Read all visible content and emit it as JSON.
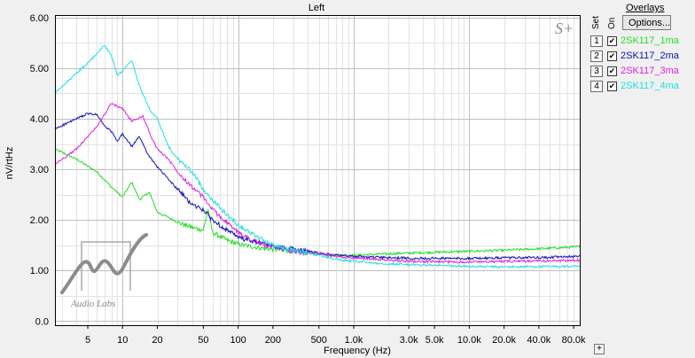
{
  "colors": {
    "background": "#ffffff",
    "grid_major": "#bfbfbf",
    "grid_minor": "#e3e3e3",
    "series": [
      "#22dd22",
      "#1010c0",
      "#e020e0",
      "#20e0e0"
    ]
  },
  "overlays": {
    "title": "Overlays",
    "options_label": "Options...",
    "set_label": "Set",
    "on_label": "On",
    "checkmark": "✔",
    "items": [
      {
        "num": "1",
        "name": "2SK117_1ma"
      },
      {
        "num": "2",
        "name": "2SK117_2ma"
      },
      {
        "num": "3",
        "name": "2SK117_3ma"
      },
      {
        "num": "4",
        "name": "2SK117_4ma"
      }
    ]
  },
  "corner_button": "+",
  "watermark": {
    "logo_text": "Audio Labs",
    "mark": "S+"
  },
  "chart_data": {
    "type": "line",
    "title": "Left",
    "xlabel": "Frequency (Hz)",
    "ylabel": "nV/rtHz",
    "x_scale": "log",
    "xlim": [
      2.6,
      92000
    ],
    "ylim": [
      -0.1,
      6.05
    ],
    "grid": true,
    "xticks": [
      {
        "v": 5,
        "label": "5"
      },
      {
        "v": 10,
        "label": "10"
      },
      {
        "v": 20,
        "label": "20"
      },
      {
        "v": 50,
        "label": "50"
      },
      {
        "v": 100,
        "label": "100"
      },
      {
        "v": 200,
        "label": "200"
      },
      {
        "v": 500,
        "label": "500"
      },
      {
        "v": 1000,
        "label": "1.0k"
      },
      {
        "v": 3000,
        "label": "3.0k"
      },
      {
        "v": 5000,
        "label": "5.0k"
      },
      {
        "v": 10000,
        "label": "10.0k"
      },
      {
        "v": 20000,
        "label": "20.0k"
      },
      {
        "v": 40000,
        "label": "40.0k"
      },
      {
        "v": 80000,
        "label": "80.0k"
      }
    ],
    "yticks": [
      {
        "v": 0,
        "label": "0.0"
      },
      {
        "v": 1,
        "label": "1.00"
      },
      {
        "v": 2,
        "label": "2.00"
      },
      {
        "v": 3,
        "label": "3.00"
      },
      {
        "v": 4,
        "label": "4.00"
      },
      {
        "v": 5,
        "label": "5.00"
      },
      {
        "v": 6,
        "label": "6.00"
      }
    ],
    "series": [
      {
        "name": "2SK117_1ma",
        "points": [
          [
            2.6,
            3.4
          ],
          [
            4,
            3.2
          ],
          [
            6,
            2.95
          ],
          [
            8,
            2.65
          ],
          [
            10,
            2.45
          ],
          [
            12,
            2.75
          ],
          [
            14,
            2.4
          ],
          [
            17,
            2.55
          ],
          [
            20,
            2.15
          ],
          [
            25,
            2.05
          ],
          [
            30,
            1.95
          ],
          [
            40,
            1.85
          ],
          [
            50,
            1.8
          ],
          [
            55,
            2.2
          ],
          [
            60,
            1.75
          ],
          [
            80,
            1.6
          ],
          [
            100,
            1.52
          ],
          [
            150,
            1.45
          ],
          [
            200,
            1.42
          ],
          [
            300,
            1.38
          ],
          [
            500,
            1.33
          ],
          [
            700,
            1.3
          ],
          [
            1000,
            1.3
          ],
          [
            2000,
            1.33
          ],
          [
            5000,
            1.36
          ],
          [
            10000,
            1.38
          ],
          [
            20000,
            1.4
          ],
          [
            50000,
            1.44
          ],
          [
            92000,
            1.47
          ]
        ]
      },
      {
        "name": "2SK117_2ma",
        "points": [
          [
            2.6,
            3.8
          ],
          [
            4,
            4.0
          ],
          [
            5,
            4.1
          ],
          [
            6,
            4.08
          ],
          [
            7,
            3.85
          ],
          [
            8,
            3.75
          ],
          [
            9,
            3.55
          ],
          [
            10,
            3.7
          ],
          [
            12,
            3.45
          ],
          [
            14,
            3.65
          ],
          [
            17,
            3.25
          ],
          [
            20,
            3.05
          ],
          [
            25,
            2.8
          ],
          [
            30,
            2.6
          ],
          [
            40,
            2.3
          ],
          [
            50,
            2.2
          ],
          [
            60,
            2.0
          ],
          [
            80,
            1.8
          ],
          [
            100,
            1.65
          ],
          [
            150,
            1.55
          ],
          [
            200,
            1.48
          ],
          [
            300,
            1.42
          ],
          [
            500,
            1.35
          ],
          [
            700,
            1.3
          ],
          [
            1000,
            1.28
          ],
          [
            2000,
            1.25
          ],
          [
            5000,
            1.24
          ],
          [
            10000,
            1.24
          ],
          [
            20000,
            1.25
          ],
          [
            50000,
            1.26
          ],
          [
            92000,
            1.28
          ]
        ]
      },
      {
        "name": "2SK117_3ma",
        "points": [
          [
            2.6,
            3.1
          ],
          [
            4,
            3.4
          ],
          [
            6,
            3.85
          ],
          [
            8,
            4.3
          ],
          [
            10,
            4.2
          ],
          [
            12,
            3.95
          ],
          [
            15,
            4.05
          ],
          [
            18,
            3.6
          ],
          [
            20,
            3.4
          ],
          [
            25,
            3.2
          ],
          [
            30,
            2.95
          ],
          [
            40,
            2.65
          ],
          [
            50,
            2.45
          ],
          [
            60,
            2.2
          ],
          [
            80,
            1.95
          ],
          [
            100,
            1.75
          ],
          [
            150,
            1.55
          ],
          [
            200,
            1.45
          ],
          [
            300,
            1.38
          ],
          [
            500,
            1.32
          ],
          [
            700,
            1.28
          ],
          [
            1000,
            1.25
          ],
          [
            2000,
            1.2
          ],
          [
            5000,
            1.17
          ],
          [
            10000,
            1.17
          ],
          [
            20000,
            1.18
          ],
          [
            50000,
            1.19
          ],
          [
            92000,
            1.2
          ]
        ]
      },
      {
        "name": "2SK117_4ma",
        "points": [
          [
            2.6,
            4.5
          ],
          [
            4,
            4.9
          ],
          [
            5,
            5.1
          ],
          [
            6,
            5.3
          ],
          [
            7,
            5.45
          ],
          [
            8,
            5.25
          ],
          [
            9,
            4.85
          ],
          [
            10,
            4.95
          ],
          [
            12,
            5.15
          ],
          [
            14,
            4.65
          ],
          [
            17,
            4.2
          ],
          [
            20,
            4.0
          ],
          [
            25,
            3.45
          ],
          [
            30,
            3.2
          ],
          [
            40,
            2.95
          ],
          [
            50,
            2.6
          ],
          [
            60,
            2.4
          ],
          [
            80,
            2.1
          ],
          [
            100,
            1.9
          ],
          [
            150,
            1.65
          ],
          [
            200,
            1.5
          ],
          [
            300,
            1.4
          ],
          [
            500,
            1.3
          ],
          [
            700,
            1.22
          ],
          [
            1000,
            1.18
          ],
          [
            2000,
            1.13
          ],
          [
            5000,
            1.1
          ],
          [
            10000,
            1.08
          ],
          [
            20000,
            1.07
          ],
          [
            50000,
            1.08
          ],
          [
            92000,
            1.08
          ]
        ]
      }
    ]
  }
}
